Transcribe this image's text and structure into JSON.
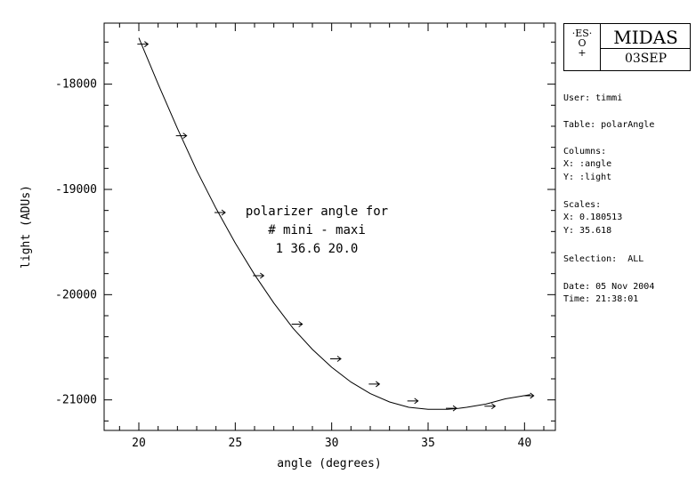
{
  "logo": {
    "eso_text": ".ES.\nO\n+",
    "midas": "MIDAS",
    "code": "03SEP"
  },
  "info": {
    "user": "User: timmi",
    "table": "Table: polarAngle",
    "columns_title": "Columns:",
    "col_x": "X: :angle",
    "col_y": "Y: :light",
    "scales_title": "Scales:",
    "scale_x": "X: 0.180513",
    "scale_y": "Y: 35.618",
    "selection": "Selection:  ALL",
    "date": "Date: 05 Nov 2004",
    "time": "Time: 21:38:01"
  },
  "chart_data": {
    "type": "scatter",
    "xlabel": "angle (degrees)",
    "ylabel": "light (ADUs)",
    "xlim": [
      18.2,
      41.6
    ],
    "ylim": [
      -21290,
      -17420
    ],
    "xticks": [
      "20",
      "25",
      "30",
      "35",
      "40"
    ],
    "yticks": [
      "-18000",
      "-19000",
      "-20000",
      "-21000"
    ],
    "xtick_values": [
      20,
      25,
      30,
      35,
      40
    ],
    "ytick_values": [
      -18000,
      -19000,
      -20000,
      -21000
    ],
    "annotation": [
      "polarizer angle for",
      "# mini - maxi",
      "1 36.6 20.0"
    ],
    "points": [
      {
        "x": 20.2,
        "y": -17620
      },
      {
        "x": 22.2,
        "y": -18490
      },
      {
        "x": 24.2,
        "y": -19220
      },
      {
        "x": 26.2,
        "y": -19820
      },
      {
        "x": 28.2,
        "y": -20280
      },
      {
        "x": 30.2,
        "y": -20610
      },
      {
        "x": 32.2,
        "y": -20850
      },
      {
        "x": 34.2,
        "y": -21010
      },
      {
        "x": 36.2,
        "y": -21080
      },
      {
        "x": 38.2,
        "y": -21060
      },
      {
        "x": 40.2,
        "y": -20960
      }
    ],
    "fit_curve": {
      "x": [
        20.0,
        21.0,
        22.0,
        23.0,
        24.0,
        25.0,
        26.0,
        27.0,
        28.0,
        29.0,
        30.0,
        31.0,
        32.0,
        33.0,
        34.0,
        35.0,
        36.0,
        36.6,
        37.0,
        38.0,
        39.0,
        40.0,
        40.3
      ],
      "y": [
        -17560,
        -18000,
        -18420,
        -18820,
        -19180,
        -19510,
        -19810,
        -20080,
        -20320,
        -20520,
        -20690,
        -20830,
        -20940,
        -21020,
        -21070,
        -21090,
        -21090,
        -21080,
        -21070,
        -21040,
        -20990,
        -20960,
        -20950
      ]
    }
  }
}
